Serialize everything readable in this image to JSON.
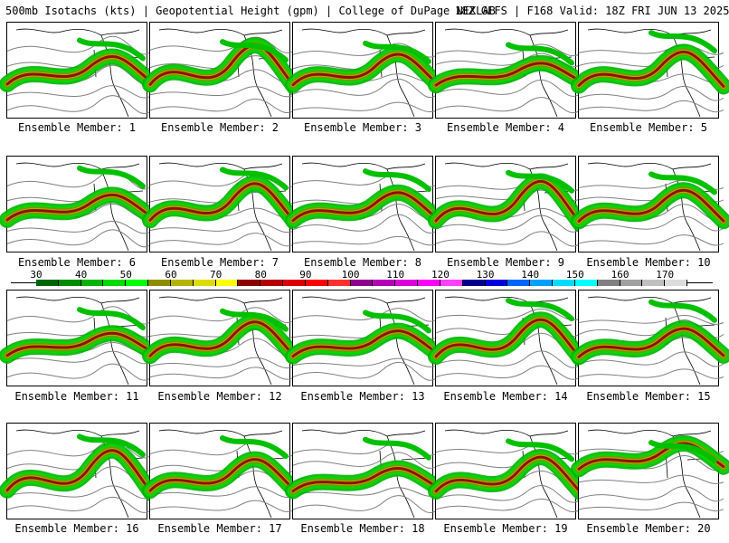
{
  "header": {
    "left_title": "500mb Isotachs (kts) | Geopotential Height (gpm) | College of DuPage NEXLAB",
    "right_title": "18Z GEFS | F168 Valid: 18Z FRI JUN 13 2025"
  },
  "panels": [
    {
      "label": "Ensemble Member: 1"
    },
    {
      "label": "Ensemble Member: 2"
    },
    {
      "label": "Ensemble Member: 3"
    },
    {
      "label": "Ensemble Member: 4"
    },
    {
      "label": "Ensemble Member: 5"
    },
    {
      "label": "Ensemble Member: 6"
    },
    {
      "label": "Ensemble Member: 7"
    },
    {
      "label": "Ensemble Member: 8"
    },
    {
      "label": "Ensemble Member: 9"
    },
    {
      "label": "Ensemble Member: 10"
    },
    {
      "label": "Ensemble Member: 11"
    },
    {
      "label": "Ensemble Member: 12"
    },
    {
      "label": "Ensemble Member: 13"
    },
    {
      "label": "Ensemble Member: 14"
    },
    {
      "label": "Ensemble Member: 15"
    },
    {
      "label": "Ensemble Member: 16"
    },
    {
      "label": "Ensemble Member: 17"
    },
    {
      "label": "Ensemble Member: 18"
    },
    {
      "label": "Ensemble Member: 19"
    },
    {
      "label": "Ensemble Member: 20"
    }
  ],
  "colorbar": {
    "labels": [
      "30",
      "40",
      "50",
      "60",
      "70",
      "80",
      "90",
      "100",
      "110",
      "120",
      "130",
      "140",
      "150",
      "160",
      "170"
    ],
    "colors": [
      "#006400",
      "#008c00",
      "#00b400",
      "#00dc00",
      "#00ff00",
      "#8c8c00",
      "#b4b400",
      "#dcdc00",
      "#ffff00",
      "#8c0000",
      "#b40000",
      "#dc0000",
      "#ff0000",
      "#ff3030",
      "#8c008c",
      "#b400b4",
      "#dc00dc",
      "#ff00ff",
      "#ff40ff",
      "#00008c",
      "#0000dc",
      "#0064ff",
      "#00a0ff",
      "#00dcff",
      "#00ffff",
      "#808080",
      "#a0a0a0",
      "#c0c0c0",
      "#dcdcdc"
    ]
  }
}
